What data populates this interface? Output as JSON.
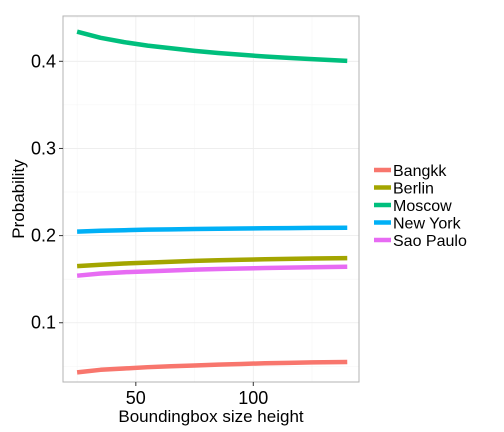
{
  "chart_data": {
    "type": "line",
    "title": "",
    "xlabel": "Boundingbox size height",
    "ylabel": "Probability",
    "xlim": [
      19,
      145
    ],
    "ylim": [
      0.032,
      0.452
    ],
    "x_ticks": [
      50,
      100
    ],
    "x_tick_labels": [
      "50",
      "100"
    ],
    "y_ticks": [
      0.1,
      0.2,
      0.3,
      0.4
    ],
    "y_tick_labels": [
      "0.1",
      "0.2",
      "0.3",
      "0.4"
    ],
    "grid": true,
    "legend_position": "right",
    "x": [
      25,
      35,
      45,
      55,
      65,
      75,
      85,
      95,
      105,
      115,
      125,
      140
    ],
    "series": [
      {
        "name": "Bangkk",
        "color": "#F8766D",
        "values": [
          0.043,
          0.046,
          0.0475,
          0.049,
          0.05,
          0.051,
          0.052,
          0.0527,
          0.0535,
          0.054,
          0.0545,
          0.055
        ]
      },
      {
        "name": "Berlin",
        "color": "#A3A500",
        "values": [
          0.165,
          0.1665,
          0.168,
          0.169,
          0.17,
          0.171,
          0.1717,
          0.1723,
          0.1728,
          0.1733,
          0.1737,
          0.1742
        ]
      },
      {
        "name": "Moscow",
        "color": "#00BF7D",
        "values": [
          0.434,
          0.427,
          0.422,
          0.418,
          0.415,
          0.412,
          0.4095,
          0.4075,
          0.4055,
          0.404,
          0.4025,
          0.4005
        ]
      },
      {
        "name": "New York",
        "color": "#00B0F6",
        "values": [
          0.2045,
          0.2055,
          0.2062,
          0.2068,
          0.2072,
          0.2076,
          0.2079,
          0.2082,
          0.2084,
          0.2086,
          0.2088,
          0.209
        ]
      },
      {
        "name": "Sao Paulo",
        "color": "#E76BF3",
        "values": [
          0.154,
          0.1565,
          0.158,
          0.159,
          0.16,
          0.161,
          0.1617,
          0.1623,
          0.1628,
          0.1633,
          0.1637,
          0.1642
        ]
      }
    ]
  }
}
